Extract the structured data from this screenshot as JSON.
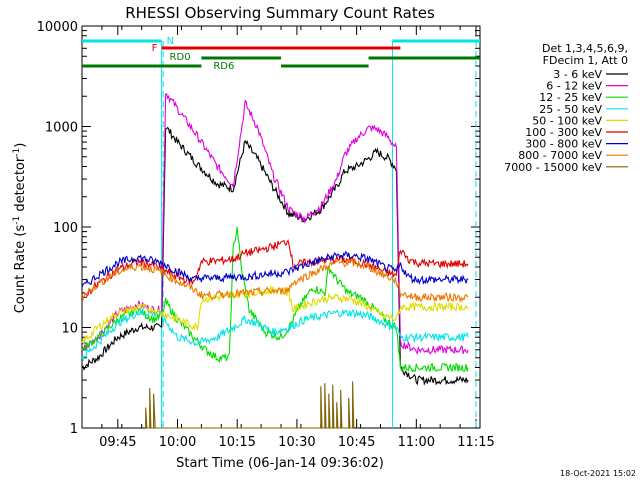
{
  "chart_data": {
    "type": "line",
    "title": "RHESSI Observing Summary Count Rates",
    "xlabel": "Start Time (06-Jan-14 09:36:02)",
    "ylabel_main": "Count Rate (s",
    "ylabel_sup": "-1",
    "ylabel_mid": " detector",
    "ylabel_sup2": "-1",
    "ylabel_end": ")",
    "yscale": "log",
    "ylim": [
      1,
      10000
    ],
    "xlim_minutes": [
      576,
      676
    ],
    "y_ticks": [
      {
        "value": 1,
        "label": "1"
      },
      {
        "value": 10,
        "label": "10"
      },
      {
        "value": 100,
        "label": "100"
      },
      {
        "value": 1000,
        "label": "1000"
      },
      {
        "value": 10000,
        "label": "10000"
      }
    ],
    "x_ticks": [
      {
        "value": 585,
        "label": "09:45"
      },
      {
        "value": 600,
        "label": "10:00"
      },
      {
        "value": 615,
        "label": "10:15"
      },
      {
        "value": 630,
        "label": "10:30"
      },
      {
        "value": 645,
        "label": "10:45"
      },
      {
        "value": 660,
        "label": "11:00"
      },
      {
        "value": 675,
        "label": "11:15"
      }
    ],
    "legend_header": [
      "Det 1,3,4,5,6,9,",
      "FDecim 1, Att 0"
    ],
    "timestamp": "18-Oct-2021 15:02",
    "night_intervals": [
      [
        576,
        596
      ],
      [
        654,
        676
      ]
    ],
    "night_label": "N",
    "flare_label": "F",
    "flare_interval": [
      596,
      656
    ],
    "rd_labels": [
      {
        "label": "RD0",
        "x": 598
      },
      {
        "label": "RD6",
        "x": 609
      }
    ],
    "colors": {
      "night": "#00e5e5",
      "flare": "#e00000",
      "decim": "#007700"
    },
    "series": [
      {
        "name": "3 - 6 keV",
        "color": "#000000",
        "points": [
          [
            576,
            4
          ],
          [
            580,
            5
          ],
          [
            585,
            8
          ],
          [
            590,
            10
          ],
          [
            594,
            10
          ],
          [
            596,
            10
          ],
          [
            597,
            1000
          ],
          [
            600,
            700
          ],
          [
            605,
            420
          ],
          [
            610,
            270
          ],
          [
            614,
            240
          ],
          [
            617,
            700
          ],
          [
            620,
            480
          ],
          [
            624,
            250
          ],
          [
            628,
            135
          ],
          [
            632,
            120
          ],
          [
            636,
            150
          ],
          [
            640,
            250
          ],
          [
            642,
            360
          ],
          [
            645,
            400
          ],
          [
            648,
            480
          ],
          [
            650,
            560
          ],
          [
            653,
            480
          ],
          [
            655,
            380
          ],
          [
            656,
            4
          ],
          [
            660,
            3
          ],
          [
            665,
            3
          ],
          [
            670,
            3
          ],
          [
            673,
            3
          ]
        ]
      },
      {
        "name": "6 - 12 keV",
        "color": "#e000e0",
        "points": [
          [
            576,
            6
          ],
          [
            580,
            8
          ],
          [
            585,
            14
          ],
          [
            590,
            17
          ],
          [
            594,
            15
          ],
          [
            596,
            15
          ],
          [
            597,
            2200
          ],
          [
            600,
            1500
          ],
          [
            605,
            800
          ],
          [
            610,
            400
          ],
          [
            614,
            260
          ],
          [
            617,
            1700
          ],
          [
            620,
            1000
          ],
          [
            624,
            330
          ],
          [
            628,
            150
          ],
          [
            632,
            120
          ],
          [
            636,
            160
          ],
          [
            640,
            300
          ],
          [
            642,
            520
          ],
          [
            645,
            760
          ],
          [
            648,
            960
          ],
          [
            650,
            950
          ],
          [
            653,
            780
          ],
          [
            655,
            600
          ],
          [
            656,
            7
          ],
          [
            660,
            6
          ],
          [
            665,
            6
          ],
          [
            670,
            6
          ],
          [
            673,
            6
          ]
        ]
      },
      {
        "name": "12 - 25 keV",
        "color": "#00dd00",
        "points": [
          [
            576,
            6
          ],
          [
            580,
            8
          ],
          [
            585,
            12
          ],
          [
            590,
            15
          ],
          [
            594,
            12
          ],
          [
            596,
            13
          ],
          [
            597,
            18
          ],
          [
            600,
            12
          ],
          [
            604,
            8
          ],
          [
            607,
            6
          ],
          [
            610,
            5
          ],
          [
            613,
            5
          ],
          [
            614,
            60
          ],
          [
            615,
            100
          ],
          [
            616,
            40
          ],
          [
            618,
            15
          ],
          [
            622,
            9
          ],
          [
            626,
            8
          ],
          [
            628,
            10
          ],
          [
            631,
            17
          ],
          [
            634,
            25
          ],
          [
            637,
            22
          ],
          [
            638,
            40
          ],
          [
            640,
            30
          ],
          [
            643,
            22
          ],
          [
            646,
            20
          ],
          [
            649,
            16
          ],
          [
            652,
            12
          ],
          [
            655,
            10
          ],
          [
            656,
            4
          ],
          [
            660,
            4
          ],
          [
            665,
            4
          ],
          [
            670,
            4
          ],
          [
            673,
            4
          ]
        ]
      },
      {
        "name": "25 - 50 keV",
        "color": "#00e5e5",
        "points": [
          [
            576,
            5
          ],
          [
            580,
            7
          ],
          [
            585,
            11
          ],
          [
            590,
            14
          ],
          [
            594,
            14
          ],
          [
            596,
            13
          ],
          [
            600,
            8
          ],
          [
            605,
            7
          ],
          [
            610,
            8
          ],
          [
            614,
            10
          ],
          [
            617,
            12
          ],
          [
            620,
            11
          ],
          [
            624,
            9
          ],
          [
            628,
            10
          ],
          [
            632,
            12
          ],
          [
            636,
            13
          ],
          [
            640,
            14
          ],
          [
            644,
            14
          ],
          [
            648,
            13
          ],
          [
            652,
            11
          ],
          [
            655,
            10
          ],
          [
            656,
            8
          ],
          [
            660,
            8
          ],
          [
            665,
            8
          ],
          [
            670,
            8
          ],
          [
            673,
            8
          ]
        ]
      },
      {
        "name": "50 - 100 keV",
        "color": "#dddd00",
        "points": [
          [
            576,
            7
          ],
          [
            580,
            10
          ],
          [
            585,
            14
          ],
          [
            590,
            16
          ],
          [
            594,
            15
          ],
          [
            596,
            14
          ],
          [
            600,
            12
          ],
          [
            605,
            10
          ],
          [
            606,
            19
          ],
          [
            610,
            20
          ],
          [
            614,
            21
          ],
          [
            618,
            22
          ],
          [
            622,
            23
          ],
          [
            626,
            24
          ],
          [
            628,
            22
          ],
          [
            629,
            15
          ],
          [
            632,
            17
          ],
          [
            636,
            19
          ],
          [
            640,
            20
          ],
          [
            644,
            19
          ],
          [
            648,
            16
          ],
          [
            652,
            13
          ],
          [
            655,
            12
          ],
          [
            656,
            16
          ],
          [
            660,
            16
          ],
          [
            665,
            16
          ],
          [
            670,
            16
          ],
          [
            673,
            16
          ]
        ]
      },
      {
        "name": "100 - 300 keV",
        "color": "#e00000",
        "points": [
          [
            576,
            20
          ],
          [
            580,
            27
          ],
          [
            585,
            38
          ],
          [
            590,
            45
          ],
          [
            594,
            42
          ],
          [
            596,
            38
          ],
          [
            600,
            32
          ],
          [
            604,
            28
          ],
          [
            606,
            45
          ],
          [
            610,
            46
          ],
          [
            614,
            48
          ],
          [
            617,
            55
          ],
          [
            620,
            58
          ],
          [
            624,
            64
          ],
          [
            628,
            73
          ],
          [
            629,
            42
          ],
          [
            632,
            44
          ],
          [
            636,
            46
          ],
          [
            640,
            48
          ],
          [
            644,
            46
          ],
          [
            648,
            42
          ],
          [
            652,
            36
          ],
          [
            655,
            33
          ],
          [
            656,
            60
          ],
          [
            658,
            48
          ],
          [
            660,
            44
          ],
          [
            665,
            43
          ],
          [
            670,
            43
          ],
          [
            673,
            43
          ]
        ]
      },
      {
        "name": "300 - 800 keV",
        "color": "#0000cc",
        "points": [
          [
            576,
            25
          ],
          [
            580,
            33
          ],
          [
            585,
            44
          ],
          [
            590,
            50
          ],
          [
            594,
            46
          ],
          [
            596,
            44
          ],
          [
            600,
            36
          ],
          [
            604,
            30
          ],
          [
            606,
            31
          ],
          [
            610,
            31
          ],
          [
            614,
            32
          ],
          [
            618,
            32
          ],
          [
            622,
            34
          ],
          [
            626,
            35
          ],
          [
            628,
            36
          ],
          [
            629,
            38
          ],
          [
            632,
            42
          ],
          [
            636,
            47
          ],
          [
            640,
            52
          ],
          [
            644,
            52
          ],
          [
            648,
            48
          ],
          [
            652,
            40
          ],
          [
            655,
            36
          ],
          [
            656,
            42
          ],
          [
            658,
            32
          ],
          [
            660,
            30
          ],
          [
            665,
            30
          ],
          [
            670,
            30
          ],
          [
            673,
            30
          ]
        ]
      },
      {
        "name": "800 - 7000 keV",
        "color": "#ee7700",
        "points": [
          [
            576,
            20
          ],
          [
            580,
            27
          ],
          [
            585,
            36
          ],
          [
            590,
            41
          ],
          [
            594,
            38
          ],
          [
            596,
            35
          ],
          [
            600,
            29
          ],
          [
            604,
            24
          ],
          [
            606,
            21
          ],
          [
            610,
            21
          ],
          [
            614,
            22
          ],
          [
            618,
            22
          ],
          [
            622,
            23
          ],
          [
            626,
            23
          ],
          [
            628,
            24
          ],
          [
            629,
            28
          ],
          [
            632,
            32
          ],
          [
            636,
            38
          ],
          [
            640,
            44
          ],
          [
            644,
            44
          ],
          [
            648,
            40
          ],
          [
            652,
            33
          ],
          [
            655,
            29
          ],
          [
            656,
            22
          ],
          [
            660,
            20
          ],
          [
            665,
            20
          ],
          [
            670,
            20
          ],
          [
            673,
            20
          ]
        ]
      },
      {
        "name": "7000 - 15000 keV",
        "color": "#806000",
        "points": [
          [
            592,
            1
          ],
          [
            592,
            1.6
          ],
          [
            592.3,
            1
          ],
          [
            593,
            1
          ],
          [
            593,
            2.5
          ],
          [
            593.3,
            1
          ],
          [
            594,
            1
          ],
          [
            594,
            2.2
          ],
          [
            594.4,
            1
          ],
          [
            636,
            1
          ],
          [
            636,
            2.6
          ],
          [
            636.3,
            1
          ],
          [
            637,
            1
          ],
          [
            637,
            2.8
          ],
          [
            637.3,
            1
          ],
          [
            638,
            1
          ],
          [
            638,
            2.2
          ],
          [
            638.3,
            1
          ],
          [
            639,
            1
          ],
          [
            639,
            2.7
          ],
          [
            639.3,
            1
          ],
          [
            640,
            1
          ],
          [
            640,
            1.8
          ],
          [
            640.3,
            1
          ],
          [
            641,
            1
          ],
          [
            641,
            2.4
          ],
          [
            641.3,
            1
          ],
          [
            643,
            1
          ],
          [
            643,
            2.0
          ],
          [
            643.3,
            1
          ],
          [
            644,
            1
          ],
          [
            644,
            2.9
          ],
          [
            644.3,
            1
          ]
        ]
      }
    ]
  }
}
